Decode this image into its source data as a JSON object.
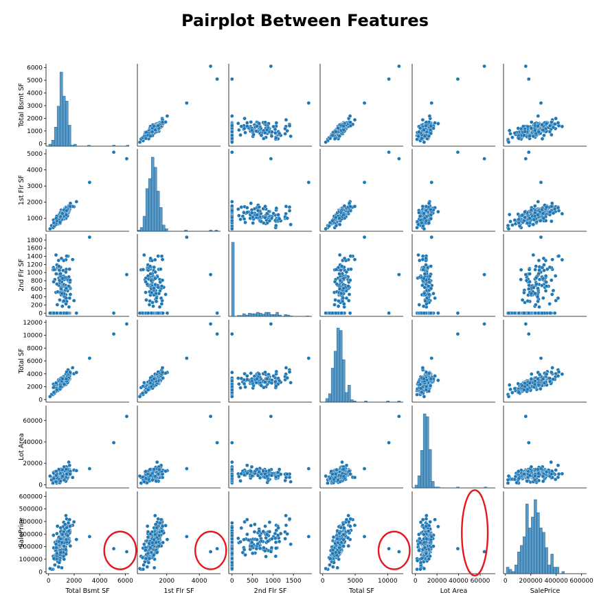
{
  "chart_data": {
    "type": "pairplot",
    "title": "Pairplot Between Features",
    "color": "#1f77b4",
    "highlight_color": "#e8151b",
    "variables": [
      {
        "name": "Total Bsmt SF",
        "ticks": [
          0,
          2000,
          4000,
          6000
        ],
        "xlabel_ticks": [
          0,
          2000,
          4000,
          6000
        ],
        "ylabel_ticks": [
          0,
          1000,
          2000,
          3000,
          4000,
          5000,
          6000
        ],
        "lim": [
          -200,
          6300
        ],
        "center": 1050,
        "spread": 420
      },
      {
        "name": "1st Flr SF",
        "ticks": [
          2000,
          4000
        ],
        "xlabel_ticks": [
          2000,
          4000
        ],
        "ylabel_ticks": [
          1000,
          2000,
          3000,
          4000,
          5000
        ],
        "lim": [
          200,
          5300
        ],
        "center": 1150,
        "spread": 380
      },
      {
        "name": "2nd Flr SF",
        "ticks": [
          0,
          500,
          1000,
          1500
        ],
        "xlabel_ticks": [
          0,
          500,
          1000,
          1500
        ],
        "ylabel_ticks": [
          0,
          200,
          400,
          600,
          800,
          1000,
          1200,
          1400,
          1600,
          1800
        ],
        "lim": [
          -80,
          1950
        ],
        "center": 700,
        "spread": 380
      },
      {
        "name": "Total SF",
        "ticks": [
          0,
          5000,
          10000
        ],
        "xlabel_ticks": [
          0,
          5000,
          10000
        ],
        "ylabel_ticks": [
          0,
          2000,
          4000,
          6000,
          8000,
          10000,
          12000
        ],
        "lim": [
          -400,
          12400
        ],
        "center": 2500,
        "spread": 800
      },
      {
        "name": "Lot Area",
        "ticks": [
          0,
          20000,
          40000,
          60000
        ],
        "xlabel_ticks": [
          0,
          20000,
          40000,
          60000
        ],
        "ylabel_ticks": [
          0,
          20000,
          40000,
          60000
        ],
        "lim": [
          -3000,
          74000
        ],
        "center": 10000,
        "spread": 4500
      },
      {
        "name": "SalePrice",
        "ticks": [
          0,
          200000,
          400000,
          600000
        ],
        "xlabel_ticks": [
          0,
          200000,
          400000,
          600000
        ],
        "ylabel_ticks": [
          0,
          100000,
          200000,
          300000,
          400000,
          500000,
          600000
        ],
        "lim": [
          -15000,
          640000
        ],
        "center": 180000,
        "spread": 75000
      }
    ],
    "outliers": [
      [
        6110,
        4692,
        950,
        11752,
        63887,
        160000
      ],
      [
        5095,
        5095,
        0,
        10190,
        39290,
        183850
      ],
      [
        3206,
        3228,
        1872,
        6428,
        15000,
        280000
      ]
    ],
    "highlights": [
      {
        "row": 5,
        "col": 0,
        "cx": 5600,
        "cy": 170000,
        "rx": 1250,
        "ry": 150000
      },
      {
        "row": 5,
        "col": 1,
        "cx": 4700,
        "cy": 170000,
        "rx": 950,
        "ry": 150000
      },
      {
        "row": 5,
        "col": 3,
        "cx": 11000,
        "cy": 170000,
        "rx": 2400,
        "ry": 150000
      },
      {
        "row": 5,
        "col": 4,
        "cx": 55000,
        "cy": 310000,
        "rx": 12000,
        "ry": 340000
      }
    ],
    "grid": false,
    "legend": "none"
  }
}
